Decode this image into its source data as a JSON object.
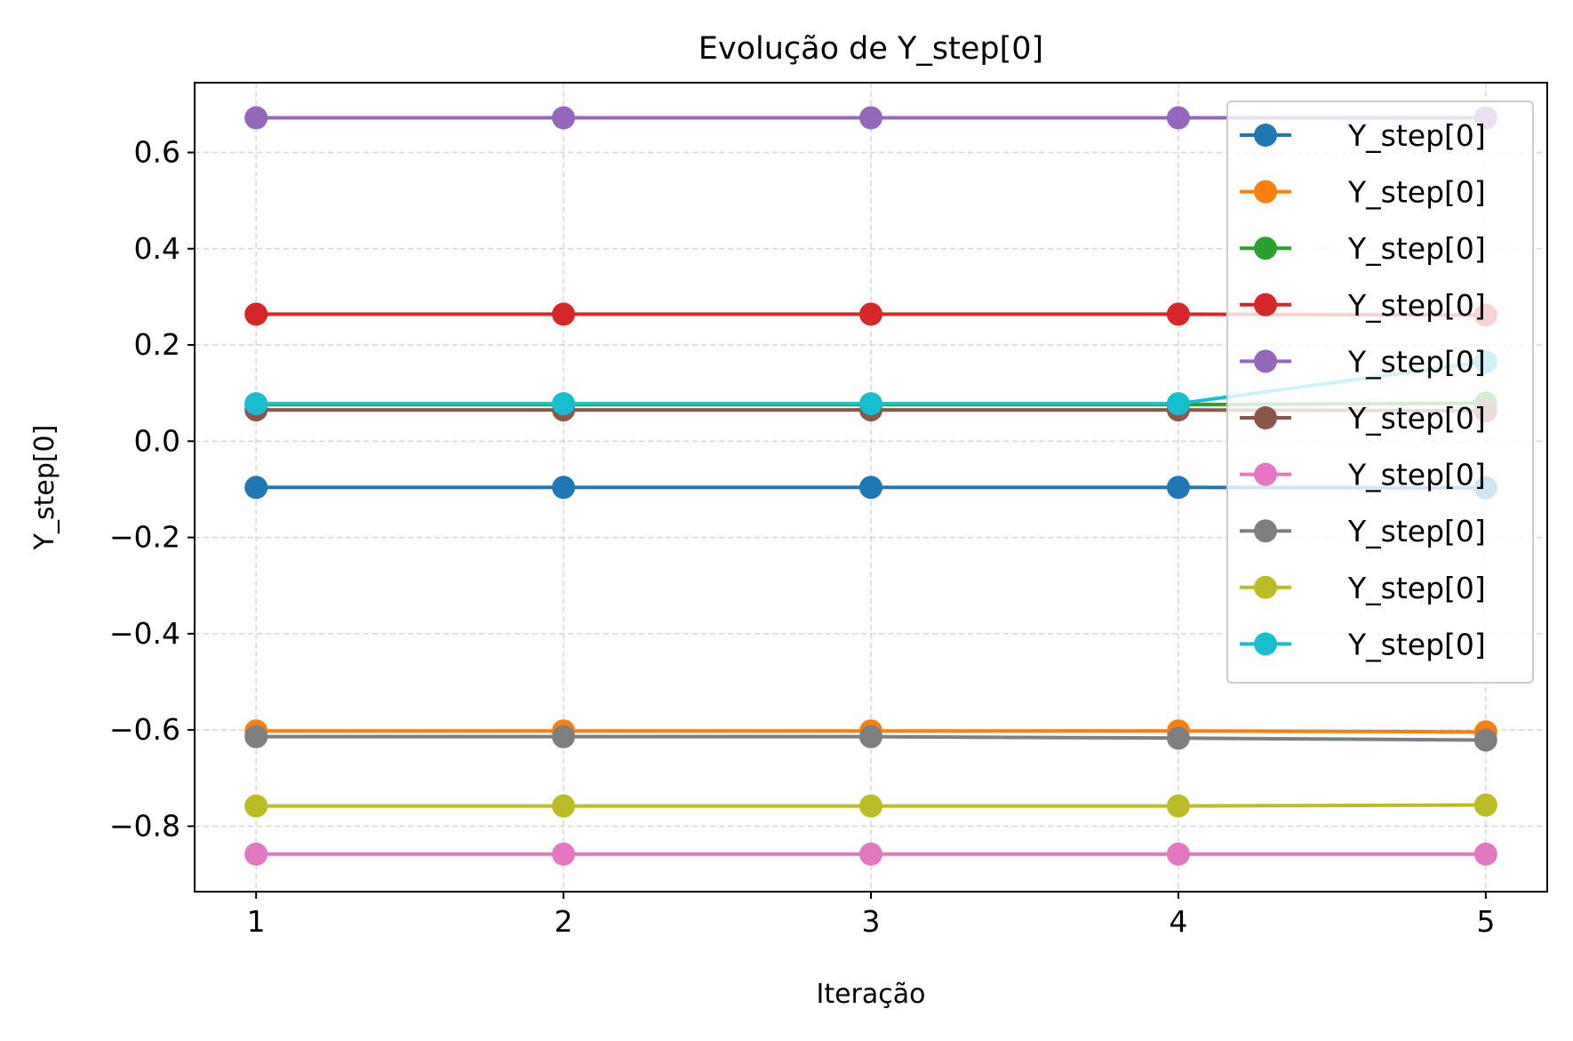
{
  "chart_data": {
    "type": "line",
    "title": "Evolução de Y_step[0]",
    "xlabel": "Iteração",
    "ylabel": "Y_step[0]",
    "x": [
      1,
      2,
      3,
      4,
      5
    ],
    "x_ticks": [
      "1",
      "2",
      "3",
      "4",
      "5"
    ],
    "y_ticks": [
      {
        "value": 0.6,
        "label": "0.6"
      },
      {
        "value": 0.4,
        "label": "0.4"
      },
      {
        "value": 0.2,
        "label": "0.2"
      },
      {
        "value": 0.0,
        "label": "0.0"
      },
      {
        "value": -0.2,
        "label": "−0.2"
      },
      {
        "value": -0.4,
        "label": "−0.4"
      },
      {
        "value": -0.6,
        "label": "−0.6"
      },
      {
        "value": -0.8,
        "label": "−0.8"
      }
    ],
    "xlim": [
      0.8,
      5.2
    ],
    "ylim": [
      -0.936,
      0.745
    ],
    "grid": true,
    "legend_position": "top-right",
    "series": [
      {
        "name": "Y_step[0]",
        "color": "#1f77b4",
        "values": [
          -0.096,
          -0.096,
          -0.096,
          -0.096,
          -0.097
        ]
      },
      {
        "name": "Y_step[0]",
        "color": "#ff7f0e",
        "values": [
          -0.602,
          -0.602,
          -0.602,
          -0.602,
          -0.604
        ]
      },
      {
        "name": "Y_step[0]",
        "color": "#2ca02c",
        "values": [
          0.076,
          0.076,
          0.076,
          0.076,
          0.079
        ]
      },
      {
        "name": "Y_step[0]",
        "color": "#d62728",
        "values": [
          0.264,
          0.264,
          0.264,
          0.264,
          0.262
        ]
      },
      {
        "name": "Y_step[0]",
        "color": "#9467bd",
        "values": [
          0.672,
          0.672,
          0.672,
          0.672,
          0.672
        ]
      },
      {
        "name": "Y_step[0]",
        "color": "#8c564b",
        "values": [
          0.065,
          0.065,
          0.065,
          0.065,
          0.063
        ]
      },
      {
        "name": "Y_step[0]",
        "color": "#e377c2",
        "values": [
          -0.858,
          -0.858,
          -0.858,
          -0.858,
          -0.858
        ]
      },
      {
        "name": "Y_step[0]",
        "color": "#7f7f7f",
        "values": [
          -0.614,
          -0.614,
          -0.614,
          -0.617,
          -0.621
        ]
      },
      {
        "name": "Y_step[0]",
        "color": "#bcbd22",
        "values": [
          -0.758,
          -0.758,
          -0.758,
          -0.758,
          -0.756
        ]
      },
      {
        "name": "Y_step[0]",
        "color": "#17becf",
        "values": [
          0.078,
          0.078,
          0.078,
          0.078,
          0.165
        ]
      }
    ]
  }
}
